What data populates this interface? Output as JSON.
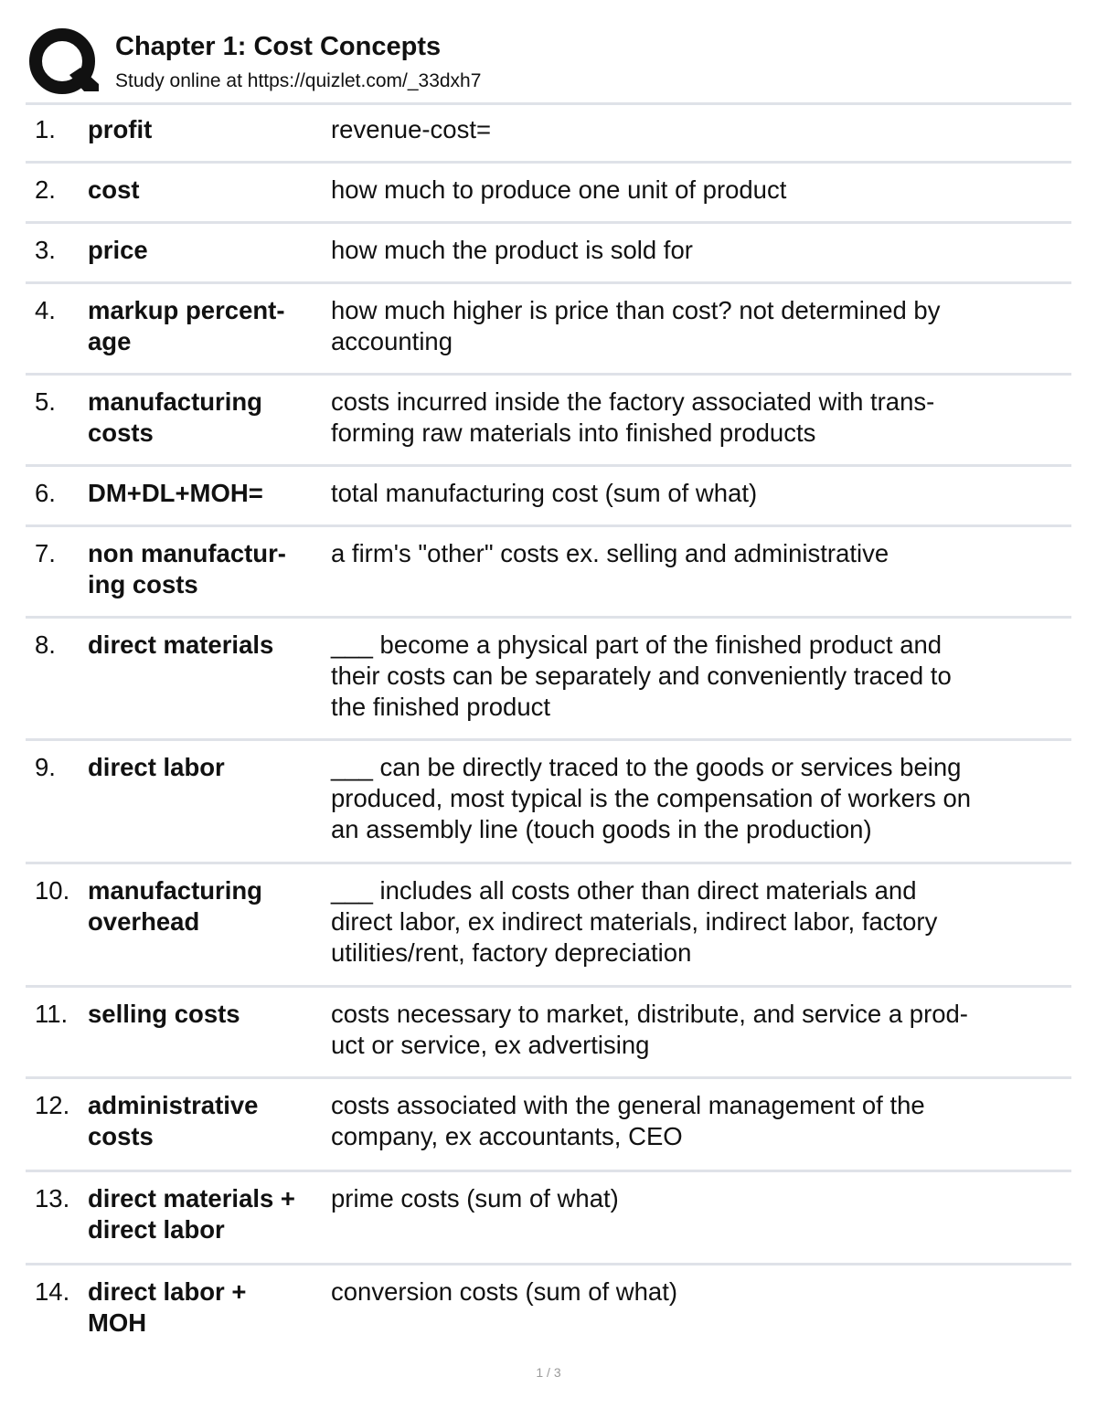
{
  "header": {
    "logo_icon": "quizlet-q-logo",
    "title": "Chapter 1: Cost Concepts",
    "subtitle": "Study online at https://quizlet.com/_33dxh7"
  },
  "terms": [
    {
      "num": "1.",
      "term": "profit",
      "definition": "revenue-cost="
    },
    {
      "num": "2.",
      "term": "cost",
      "definition": "how much to produce one unit of product"
    },
    {
      "num": "3.",
      "term": "price",
      "definition": "how much the product is sold for"
    },
    {
      "num": "4.",
      "term": "markup percent-\nage",
      "definition": "how much higher is price than cost? not determined by\naccounting"
    },
    {
      "num": "5.",
      "term": "manufacturing\ncosts",
      "definition": "costs incurred inside the factory associated with trans-\nforming raw materials into finished products"
    },
    {
      "num": "6.",
      "term": "DM+DL+MOH=",
      "definition": "total manufacturing cost (sum of what)"
    },
    {
      "num": "7.",
      "term": "non manufactur-\ning costs",
      "definition": "a firm's \"other\" costs ex. selling and administrative"
    },
    {
      "num": "8.",
      "term": "direct materials",
      "definition": "___ become a physical part of the finished product and\ntheir costs can be separately and conveniently traced to\nthe finished product"
    },
    {
      "num": "9.",
      "term": "direct labor",
      "definition": "___ can be directly traced to the goods or services being\nproduced, most typical is the compensation of workers on\nan assembly line (touch goods in the production)"
    },
    {
      "num": "10.",
      "term": "manufacturing\noverhead",
      "definition": "___ includes all costs other than direct materials and\ndirect labor, ex indirect materials, indirect labor, factory\nutilities/rent, factory depreciation"
    },
    {
      "num": "11.",
      "term": "selling costs",
      "definition": "costs necessary to market, distribute, and service a prod-\nuct or service, ex advertising"
    },
    {
      "num": "12.",
      "term": "administrative\ncosts",
      "definition": "costs associated with the general management of the\ncompany, ex accountants, CEO"
    },
    {
      "num": "13.",
      "term": "direct materials +\ndirect labor",
      "definition": "prime costs (sum of what)"
    },
    {
      "num": "14.",
      "term": "direct labor +\nMOH",
      "definition": "conversion costs (sum of what)"
    }
  ],
  "footer": {
    "page": "1 / 3"
  }
}
